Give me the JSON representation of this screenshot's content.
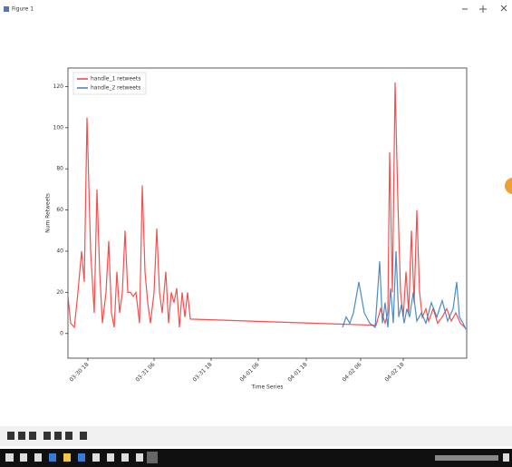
{
  "window": {
    "title": "Figure 1"
  },
  "chart_data": {
    "type": "line",
    "xlabel": "Time Series",
    "ylabel": "Num Retweets",
    "xlim": [
      0,
      440
    ],
    "ylim": [
      -12,
      129
    ],
    "xticks": [
      {
        "value": 22,
        "label": "03-30 18"
      },
      {
        "value": 95,
        "label": "03-31 06"
      },
      {
        "value": 158,
        "label": "03-31 18"
      },
      {
        "value": 210,
        "label": "04-01 06"
      },
      {
        "value": 263,
        "label": "04-01 18"
      },
      {
        "value": 323,
        "label": "04-02 06"
      },
      {
        "value": 370,
        "label": "04-02 18"
      }
    ],
    "yticks": [
      0,
      20,
      40,
      60,
      80,
      100,
      120
    ],
    "legend": "upper left",
    "series": [
      {
        "name": "handle_1 retweets",
        "color": "#ee3333",
        "x": [
          0,
          3,
          7,
          11,
          15,
          18,
          21,
          25,
          29,
          32,
          35,
          38,
          42,
          45,
          48,
          51,
          54,
          57,
          60,
          63,
          66,
          69,
          72,
          75,
          79,
          82,
          85,
          88,
          91,
          95,
          98,
          101,
          104,
          108,
          111,
          114,
          117,
          120,
          123,
          126,
          129,
          132,
          135,
          340,
          345,
          350,
          353,
          355,
          358,
          361,
          364,
          367,
          370,
          373,
          376,
          379,
          382,
          385,
          388,
          391,
          395,
          398,
          403,
          408,
          413,
          418,
          423,
          428,
          433,
          438
        ],
        "values": [
          18,
          5,
          3,
          20,
          40,
          25,
          105,
          40,
          10,
          70,
          30,
          5,
          20,
          45,
          10,
          3,
          30,
          10,
          20,
          50,
          20,
          20,
          18,
          20,
          5,
          72,
          30,
          15,
          5,
          20,
          51,
          20,
          10,
          30,
          5,
          20,
          15,
          22,
          3,
          20,
          8,
          20,
          7,
          4,
          12,
          5,
          10,
          88,
          20,
          122,
          65,
          20,
          8,
          30,
          10,
          50,
          15,
          60,
          20,
          8,
          12,
          6,
          12,
          5,
          8,
          12,
          6,
          10,
          5,
          3
        ]
      },
      {
        "name": "handle_2 retweets",
        "color": "#2f78b4",
        "x": [
          303,
          307,
          311,
          315,
          321,
          327,
          333,
          339,
          344,
          347,
          350,
          353,
          356,
          359,
          362,
          365,
          368,
          371,
          374,
          377,
          381,
          385,
          390,
          395,
          401,
          407,
          413,
          419,
          425,
          429,
          432,
          436,
          439
        ],
        "values": [
          3,
          8,
          5,
          10,
          25,
          10,
          5,
          3,
          35,
          5,
          15,
          3,
          22,
          5,
          40,
          8,
          14,
          5,
          12,
          8,
          20,
          6,
          10,
          5,
          15,
          8,
          16,
          6,
          12,
          25,
          8,
          5,
          2
        ]
      }
    ]
  }
}
